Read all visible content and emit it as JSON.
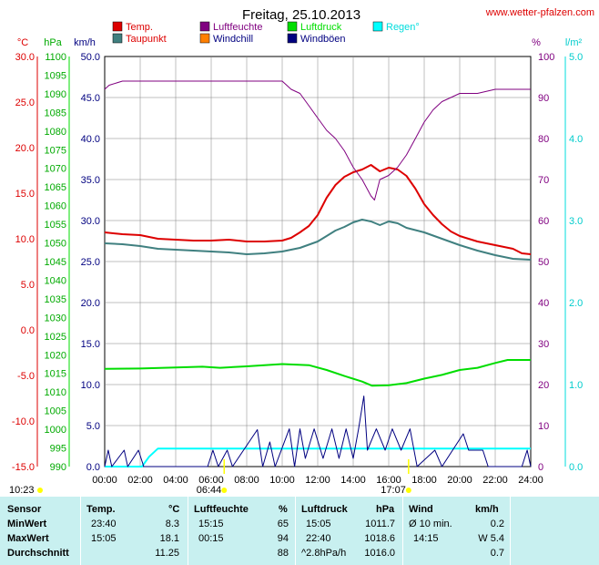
{
  "site": "www.wetter-pfalzen.com",
  "chart_data": {
    "type": "line",
    "title": "Freitag, 25.10.2013",
    "x_labels": [
      "00:00",
      "02:00",
      "04:00",
      "06:00",
      "08:00",
      "10:00",
      "12:00",
      "14:00",
      "16:00",
      "18:00",
      "20:00",
      "22:00",
      "24:00"
    ],
    "x_range_hours": [
      0,
      24
    ],
    "grid": true,
    "legend_position": "top",
    "axes": {
      "temp": {
        "unit": "°C",
        "color": "#dd0000",
        "range": [
          -15,
          30
        ],
        "ticks": [
          "30.0",
          "25.0",
          "20.0",
          "15.0",
          "10.0",
          "5.0",
          "0.0",
          "-5.0",
          "-10.0",
          "-15.0"
        ],
        "side": "left"
      },
      "pressure": {
        "unit": "hPa",
        "color": "#00aa00",
        "range": [
          990,
          1100
        ],
        "ticks": [
          "1100",
          "1095",
          "1090",
          "1085",
          "1080",
          "1075",
          "1070",
          "1065",
          "1060",
          "1055",
          "1050",
          "1045",
          "1040",
          "1035",
          "1030",
          "1025",
          "1020",
          "1015",
          "1010",
          "1005",
          "1000",
          "995",
          "990"
        ],
        "side": "left"
      },
      "wind": {
        "unit": "km/h",
        "color": "#000080",
        "range": [
          0,
          50
        ],
        "ticks": [
          "50.0",
          "45.0",
          "40.0",
          "35.0",
          "30.0",
          "25.0",
          "20.0",
          "15.0",
          "10.0",
          "5.0",
          "0.0"
        ],
        "side": "left"
      },
      "humidity": {
        "unit": "%",
        "color": "#800080",
        "range": [
          0,
          100
        ],
        "ticks": [
          "100",
          "90",
          "80",
          "70",
          "60",
          "50",
          "40",
          "30",
          "20",
          "10",
          "0"
        ],
        "side": "right"
      },
      "rain": {
        "unit": "l/m²",
        "color": "#00cccc",
        "range": [
          0,
          5
        ],
        "ticks": [
          "5.0",
          "4.0",
          "3.0",
          "2.0",
          "1.0",
          "0.0"
        ],
        "side": "right"
      }
    },
    "legend": [
      {
        "name": "Temp.",
        "color": "#dd0000"
      },
      {
        "name": "Luftfeuchte",
        "color": "#800080"
      },
      {
        "name": "Luftdruck",
        "color": "#00dd00"
      },
      {
        "name": "Regen°",
        "color": "#00ffff"
      },
      {
        "name": "Taupunkt",
        "color": "#408080"
      },
      {
        "name": "Windchill",
        "color": "#ff8000"
      },
      {
        "name": "Windböen",
        "color": "#000080"
      }
    ],
    "series": [
      {
        "name": "Temp.",
        "axis": "temp",
        "color": "#dd0000",
        "points": [
          [
            0,
            10.7
          ],
          [
            1,
            10.5
          ],
          [
            2,
            10.4
          ],
          [
            3,
            10.0
          ],
          [
            4,
            9.9
          ],
          [
            5,
            9.8
          ],
          [
            6,
            9.8
          ],
          [
            7,
            9.9
          ],
          [
            8,
            9.7
          ],
          [
            9,
            9.7
          ],
          [
            10,
            9.8
          ],
          [
            10.5,
            10.1
          ],
          [
            11,
            10.7
          ],
          [
            11.5,
            11.4
          ],
          [
            12,
            12.6
          ],
          [
            12.5,
            14.5
          ],
          [
            13,
            15.9
          ],
          [
            13.5,
            16.8
          ],
          [
            14,
            17.3
          ],
          [
            14.5,
            17.6
          ],
          [
            15,
            18.1
          ],
          [
            15.5,
            17.4
          ],
          [
            16,
            17.8
          ],
          [
            16.5,
            17.6
          ],
          [
            17,
            16.9
          ],
          [
            17.5,
            15.5
          ],
          [
            18,
            13.8
          ],
          [
            18.5,
            12.6
          ],
          [
            19,
            11.6
          ],
          [
            19.5,
            10.8
          ],
          [
            20,
            10.3
          ],
          [
            21,
            9.7
          ],
          [
            22,
            9.3
          ],
          [
            23,
            8.9
          ],
          [
            23.5,
            8.4
          ],
          [
            24,
            8.3
          ]
        ]
      },
      {
        "name": "Taupunkt",
        "axis": "temp",
        "color": "#408080",
        "points": [
          [
            0,
            9.5
          ],
          [
            1,
            9.4
          ],
          [
            2,
            9.2
          ],
          [
            3,
            8.9
          ],
          [
            4,
            8.8
          ],
          [
            5,
            8.7
          ],
          [
            6,
            8.6
          ],
          [
            7,
            8.5
          ],
          [
            8,
            8.3
          ],
          [
            9,
            8.4
          ],
          [
            10,
            8.6
          ],
          [
            11,
            9.0
          ],
          [
            12,
            9.7
          ],
          [
            12.5,
            10.3
          ],
          [
            13,
            10.9
          ],
          [
            13.5,
            11.3
          ],
          [
            14,
            11.8
          ],
          [
            14.5,
            12.1
          ],
          [
            15,
            11.9
          ],
          [
            15.5,
            11.5
          ],
          [
            16,
            11.9
          ],
          [
            16.5,
            11.7
          ],
          [
            17,
            11.2
          ],
          [
            18,
            10.7
          ],
          [
            19,
            10.0
          ],
          [
            20,
            9.3
          ],
          [
            21,
            8.7
          ],
          [
            22,
            8.2
          ],
          [
            23,
            7.8
          ],
          [
            24,
            7.7
          ]
        ]
      },
      {
        "name": "Luftdruck",
        "axis": "pressure",
        "color": "#00dd00",
        "points": [
          [
            0,
            1016.2
          ],
          [
            2,
            1016.3
          ],
          [
            4,
            1016.6
          ],
          [
            5.5,
            1016.8
          ],
          [
            6.5,
            1016.5
          ],
          [
            8,
            1016.9
          ],
          [
            10,
            1017.5
          ],
          [
            11.5,
            1017.2
          ],
          [
            12.5,
            1015.9
          ],
          [
            13.5,
            1014.3
          ],
          [
            14.5,
            1012.8
          ],
          [
            15.05,
            1011.7
          ],
          [
            16,
            1011.8
          ],
          [
            17,
            1012.4
          ],
          [
            18,
            1013.6
          ],
          [
            19,
            1014.6
          ],
          [
            20,
            1015.9
          ],
          [
            21,
            1016.5
          ],
          [
            22,
            1017.8
          ],
          [
            22.7,
            1018.6
          ],
          [
            24,
            1018.6
          ]
        ]
      },
      {
        "name": "Luftfeuchte",
        "axis": "humidity",
        "color": "#800080",
        "points": [
          [
            0,
            92
          ],
          [
            0.25,
            93
          ],
          [
            1,
            94
          ],
          [
            4,
            94
          ],
          [
            8,
            94
          ],
          [
            10,
            94
          ],
          [
            10.5,
            92
          ],
          [
            11,
            91
          ],
          [
            11.5,
            88
          ],
          [
            12,
            85
          ],
          [
            12.5,
            82
          ],
          [
            13,
            80
          ],
          [
            13.5,
            77
          ],
          [
            14,
            73
          ],
          [
            14.5,
            70
          ],
          [
            15,
            66
          ],
          [
            15.2,
            65
          ],
          [
            15.5,
            70
          ],
          [
            16,
            71
          ],
          [
            16.5,
            73
          ],
          [
            17,
            76
          ],
          [
            17.5,
            80
          ],
          [
            18,
            84
          ],
          [
            18.5,
            87
          ],
          [
            19,
            89
          ],
          [
            19.5,
            90
          ],
          [
            20,
            91
          ],
          [
            21,
            91
          ],
          [
            22,
            92
          ],
          [
            23,
            92
          ],
          [
            24,
            92
          ]
        ]
      },
      {
        "name": "Regen°",
        "axis": "rain",
        "color": "#00ffff",
        "points": [
          [
            0,
            0
          ],
          [
            2.1,
            0
          ],
          [
            2.5,
            0.12
          ],
          [
            3,
            0.22
          ],
          [
            24,
            0.22
          ]
        ]
      },
      {
        "name": "Windböen",
        "axis": "wind",
        "color": "#000080",
        "points": [
          [
            0,
            0
          ],
          [
            0.2,
            2
          ],
          [
            0.4,
            0
          ],
          [
            1.1,
            2
          ],
          [
            1.3,
            0
          ],
          [
            1.9,
            2
          ],
          [
            2.2,
            0
          ],
          [
            5.8,
            0
          ],
          [
            6.1,
            2
          ],
          [
            6.4,
            0
          ],
          [
            6.9,
            2
          ],
          [
            7.2,
            0
          ],
          [
            8.6,
            4.5
          ],
          [
            8.9,
            0
          ],
          [
            9.3,
            3
          ],
          [
            9.6,
            0
          ],
          [
            10.4,
            4.6
          ],
          [
            10.7,
            0
          ],
          [
            11,
            4.6
          ],
          [
            11.3,
            1
          ],
          [
            11.8,
            4.6
          ],
          [
            12.3,
            1
          ],
          [
            12.8,
            4.6
          ],
          [
            13.2,
            1
          ],
          [
            13.6,
            4.6
          ],
          [
            14,
            1
          ],
          [
            14.3,
            4.6
          ],
          [
            14.6,
            8.6
          ],
          [
            14.8,
            2
          ],
          [
            15.3,
            4.6
          ],
          [
            15.8,
            2
          ],
          [
            16.2,
            4.6
          ],
          [
            16.7,
            2
          ],
          [
            17.2,
            4.6
          ],
          [
            17.6,
            0
          ],
          [
            18.6,
            2
          ],
          [
            19,
            0
          ],
          [
            20.2,
            4
          ],
          [
            20.5,
            2
          ],
          [
            21.3,
            2
          ],
          [
            21.6,
            0
          ],
          [
            23.5,
            0
          ],
          [
            23.8,
            2
          ],
          [
            24,
            0
          ]
        ]
      }
    ],
    "sun_markers": [
      {
        "label": "10:23",
        "hour": null,
        "color": "#ffff00"
      },
      {
        "label": "06:44",
        "hour": 6.73,
        "color": "#ffff00"
      },
      {
        "label": "17:07",
        "hour": 17.12,
        "color": "#ffff00"
      }
    ]
  },
  "stats": {
    "headers": {
      "sensor": "Sensor",
      "temp": "Temp.",
      "temp_unit": "°C",
      "hum": "Luftfeuchte",
      "hum_unit": "%",
      "press": "Luftdruck",
      "press_unit": "hPa",
      "wind": "Wind",
      "wind_unit": "km/h"
    },
    "rows": [
      {
        "label": "MinWert",
        "t_time": "23:40",
        "t_val": "8.3",
        "h_time": "15:15",
        "h_val": "65",
        "p_time": "15:05",
        "p_val": "1011.7",
        "w_time": "Ø 10 min.",
        "w_val": "0.2"
      },
      {
        "label": "MaxWert",
        "t_time": "15:05",
        "t_val": "18.1",
        "h_time": "00:15",
        "h_val": "94",
        "p_time": "22:40",
        "p_val": "1018.6",
        "w_time": "14:15",
        "w_val": "W 5.4"
      },
      {
        "label": "Durchschnitt",
        "t_time": "",
        "t_val": "11.25",
        "h_time": "",
        "h_val": "88",
        "p_time": "^2.8hPa/h",
        "p_val": "1016.0",
        "w_time": "",
        "w_val": "0.7"
      }
    ]
  }
}
